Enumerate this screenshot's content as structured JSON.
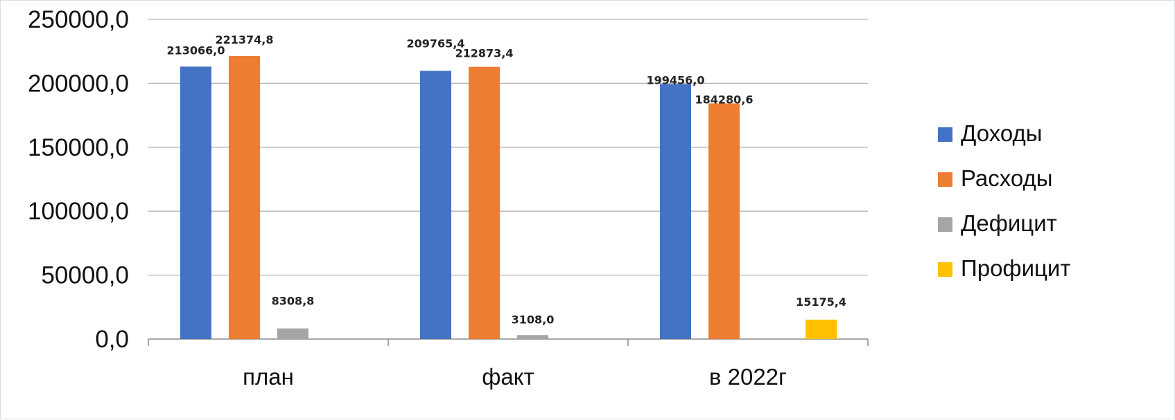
{
  "chart_data": {
    "type": "bar",
    "categories": [
      "план",
      "факт",
      "в 2022г"
    ],
    "series": [
      {
        "name": "Доходы",
        "color": "#4472C4",
        "values": [
          213066.0,
          209765.4,
          199456.0
        ],
        "labels": [
          "213066,0",
          "209765,4",
          "199456,0"
        ]
      },
      {
        "name": "Расходы",
        "color": "#ED7D31",
        "values": [
          221374.8,
          212873.4,
          184280.6
        ],
        "labels": [
          "221374,8",
          "212873,4",
          "184280,6"
        ]
      },
      {
        "name": "Дефицит",
        "color": "#A5A5A5",
        "values": [
          8308.8,
          3108.0,
          null
        ],
        "labels": [
          "8308,8",
          "3108,0",
          null
        ]
      },
      {
        "name": "Профицит",
        "color": "#FFC000",
        "values": [
          null,
          null,
          15175.4
        ],
        "labels": [
          null,
          null,
          "15175,4"
        ]
      }
    ],
    "ylim": [
      0,
      250000
    ],
    "yticks": [
      0,
      50000,
      100000,
      150000,
      200000,
      250000
    ],
    "ytick_labels": [
      "0,0",
      "50000,0",
      "100000,0",
      "150000,0",
      "200000,0",
      "250000,0"
    ],
    "grid": true,
    "legend_position": "right",
    "gridline_color": "#b3b3b3"
  }
}
